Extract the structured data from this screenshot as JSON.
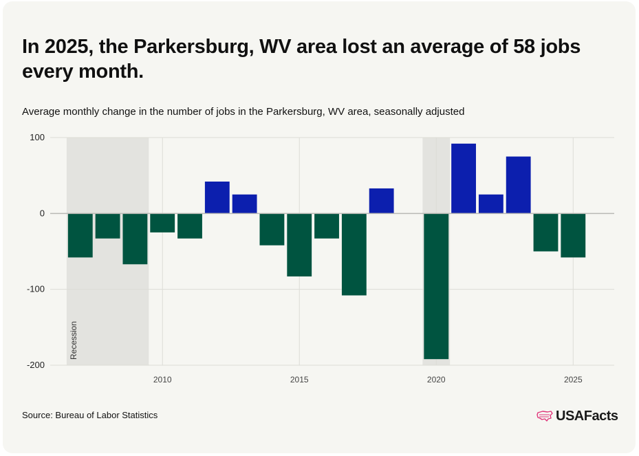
{
  "title": "In 2025, the Parkersburg, WV area lost an average of 58 jobs every month.",
  "subtitle": "Average monthly change in the number of jobs in the Parkersburg, WV area, seasonally adjusted",
  "source": "Source: Bureau of Labor Statistics",
  "brand": "USAFacts",
  "colors": {
    "negative": "#005440",
    "positive": "#0c1fae",
    "recession": "#e3e3df",
    "gridline": "#dcdcd6",
    "zero_line": "#b8b8b4",
    "text": "#222222"
  },
  "chart_data": {
    "type": "bar",
    "title": "",
    "xlabel": "",
    "ylabel": "",
    "x": [
      2007,
      2008,
      2009,
      2010,
      2011,
      2012,
      2013,
      2014,
      2015,
      2016,
      2017,
      2018,
      2020,
      2021,
      2022,
      2023,
      2024,
      2025
    ],
    "values": [
      -58,
      -33,
      -67,
      -25,
      -33,
      42,
      25,
      -42,
      -83,
      -33,
      -108,
      33,
      -192,
      92,
      25,
      75,
      -50,
      -58
    ],
    "ylim": [
      -200,
      100
    ],
    "xlim": [
      2005.9,
      2026.5
    ],
    "yticks": [
      100,
      0,
      -100,
      -200
    ],
    "ytick_labels": [
      "100",
      "0",
      "-100",
      "-200"
    ],
    "xticks": [
      2010,
      2015,
      2020,
      2025
    ],
    "xtick_labels": [
      "2010",
      "2015",
      "2020",
      "2025"
    ],
    "recessions": [
      {
        "start": 2006.5,
        "end": 2009.5,
        "label": "Recession"
      },
      {
        "start": 2019.5,
        "end": 2020.5,
        "label": ""
      }
    ],
    "grid": true,
    "legend": "none"
  }
}
